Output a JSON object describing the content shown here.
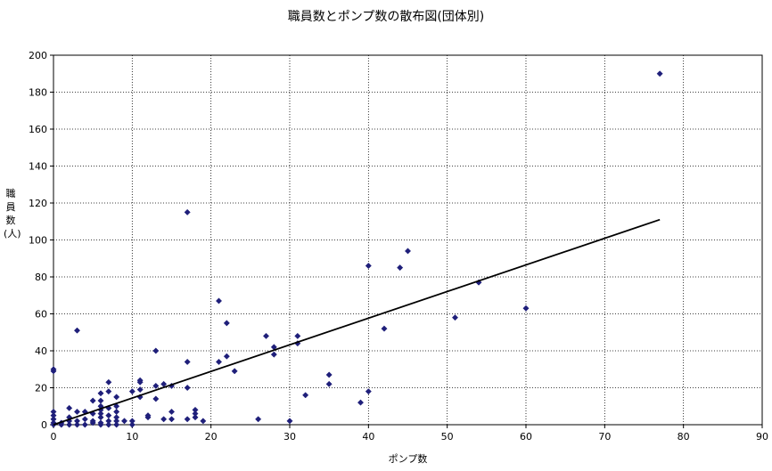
{
  "chart_data": {
    "type": "scatter",
    "title": "職員数とポンプ数の散布図(団体別)",
    "xlabel": "ポンプ数",
    "ylabel": "職員数(人)",
    "xlim": [
      0,
      90
    ],
    "ylim": [
      0,
      200
    ],
    "xticks": [
      0,
      10,
      20,
      30,
      40,
      50,
      60,
      70,
      80,
      90
    ],
    "yticks": [
      0,
      20,
      40,
      60,
      80,
      100,
      120,
      140,
      160,
      180,
      200
    ],
    "grid": true,
    "legend": "none",
    "marker_color": "#1f1f7a",
    "trendline": {
      "x": [
        0,
        77
      ],
      "y": [
        0,
        111
      ],
      "color": "#000000"
    },
    "series": [
      {
        "points": [
          [
            0,
            30
          ],
          [
            0,
            29
          ],
          [
            0,
            7
          ],
          [
            0,
            5
          ],
          [
            0,
            3
          ],
          [
            0,
            1
          ],
          [
            0,
            0
          ],
          [
            1,
            0
          ],
          [
            1,
            1
          ],
          [
            2,
            0
          ],
          [
            2,
            2
          ],
          [
            2,
            4
          ],
          [
            2,
            9
          ],
          [
            3,
            0
          ],
          [
            3,
            2
          ],
          [
            3,
            7
          ],
          [
            3,
            51
          ],
          [
            4,
            0
          ],
          [
            4,
            3
          ],
          [
            4,
            7
          ],
          [
            5,
            1
          ],
          [
            5,
            2
          ],
          [
            5,
            6
          ],
          [
            5,
            13
          ],
          [
            6,
            0
          ],
          [
            6,
            1
          ],
          [
            6,
            4
          ],
          [
            6,
            6
          ],
          [
            6,
            8
          ],
          [
            6,
            10
          ],
          [
            6,
            13
          ],
          [
            6,
            17
          ],
          [
            7,
            0
          ],
          [
            7,
            2
          ],
          [
            7,
            5
          ],
          [
            7,
            9
          ],
          [
            7,
            18
          ],
          [
            7,
            23
          ],
          [
            8,
            0
          ],
          [
            8,
            2
          ],
          [
            8,
            4
          ],
          [
            8,
            7
          ],
          [
            8,
            10
          ],
          [
            8,
            15
          ],
          [
            9,
            2
          ],
          [
            10,
            0
          ],
          [
            10,
            2
          ],
          [
            10,
            18
          ],
          [
            11,
            15
          ],
          [
            11,
            19
          ],
          [
            11,
            23
          ],
          [
            11,
            24
          ],
          [
            12,
            4
          ],
          [
            12,
            5
          ],
          [
            13,
            14
          ],
          [
            13,
            21
          ],
          [
            13,
            40
          ],
          [
            14,
            3
          ],
          [
            14,
            22
          ],
          [
            15,
            3
          ],
          [
            15,
            7
          ],
          [
            15,
            21
          ],
          [
            17,
            3
          ],
          [
            17,
            20
          ],
          [
            17,
            34
          ],
          [
            17,
            115
          ],
          [
            18,
            4
          ],
          [
            18,
            6
          ],
          [
            18,
            8
          ],
          [
            19,
            2
          ],
          [
            21,
            34
          ],
          [
            21,
            67
          ],
          [
            22,
            37
          ],
          [
            22,
            55
          ],
          [
            23,
            29
          ],
          [
            26,
            3
          ],
          [
            27,
            48
          ],
          [
            28,
            38
          ],
          [
            28,
            42
          ],
          [
            30,
            2
          ],
          [
            31,
            44
          ],
          [
            31,
            48
          ],
          [
            32,
            16
          ],
          [
            35,
            22
          ],
          [
            35,
            27
          ],
          [
            39,
            12
          ],
          [
            40,
            18
          ],
          [
            40,
            86
          ],
          [
            42,
            52
          ],
          [
            44,
            85
          ],
          [
            45,
            94
          ],
          [
            51,
            58
          ],
          [
            54,
            77
          ],
          [
            60,
            63
          ],
          [
            77,
            190
          ]
        ]
      }
    ]
  }
}
